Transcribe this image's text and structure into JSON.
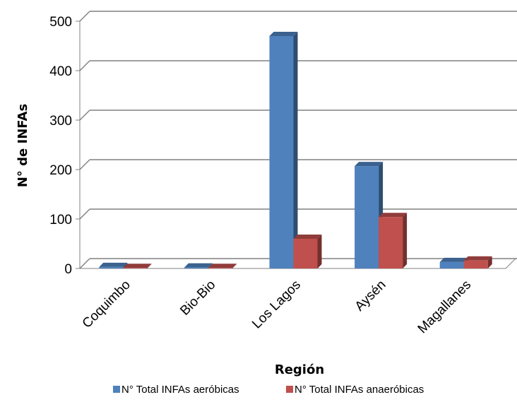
{
  "chart_data": {
    "type": "bar",
    "xlabel": "Región",
    "ylabel": "N° de INFAs",
    "categories": [
      "Coquimbo",
      "Bio-Bio",
      "Los Lagos",
      "Aysén",
      "Magallanes"
    ],
    "series": [
      {
        "name": "N° Total INFAs aeróbicas",
        "values": [
          3,
          2,
          470,
          207,
          13
        ],
        "color": "#4f81bd"
      },
      {
        "name": "N° Total INFAs anaeróbicas",
        "values": [
          1,
          1,
          60,
          104,
          16
        ],
        "color": "#c0504d"
      }
    ],
    "ylim": [
      0,
      500
    ],
    "yticks": [
      "0",
      "100",
      "200",
      "300",
      "400",
      "500"
    ],
    "grid": true,
    "three_d": true,
    "legend_position": "bottom"
  }
}
